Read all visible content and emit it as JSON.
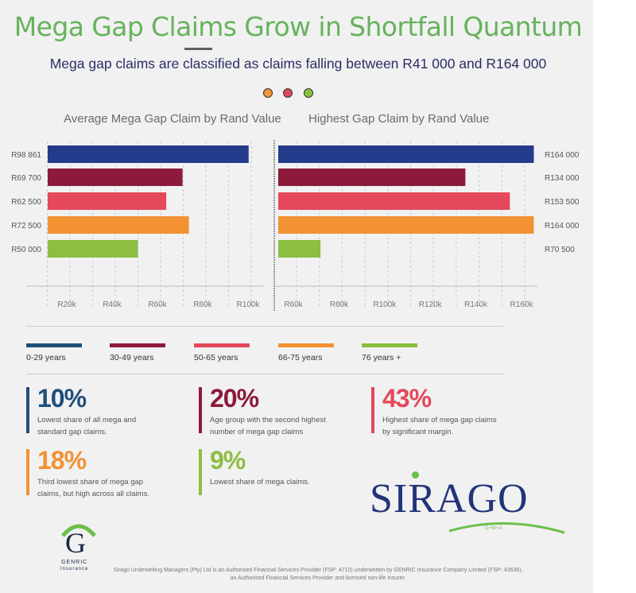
{
  "header": {
    "title": "Mega Gap Claims Grow in Shortfall Quantum",
    "subtitle": "Mega gap claims are classified as claims falling between R41 000 and R164 000",
    "dot_colors": [
      "#f0953a",
      "#e0475a",
      "#8bc140"
    ]
  },
  "chart_data": [
    {
      "type": "bar",
      "orientation": "horizontal",
      "title": "Average Mega Gap Claim by Rand Value",
      "categories": [
        "0-29 years",
        "30-49 years",
        "50-65 years",
        "66-75 years",
        "76 years +"
      ],
      "values": [
        98861,
        69700,
        62500,
        72500,
        50000
      ],
      "data_labels": [
        "R98 861",
        "R69 700",
        "R62 500",
        "R72 500",
        "R50 000"
      ],
      "colors": [
        "#233b8a",
        "#8c1a3a",
        "#e5485a",
        "#f39232",
        "#8cbe3f"
      ],
      "xticks": [
        20000,
        40000,
        60000,
        80000,
        100000
      ],
      "xtick_labels": [
        "R20k",
        "R40k",
        "R60k",
        "R80k",
        "R100k"
      ],
      "xlim": [
        10000,
        105000
      ],
      "grid": true
    },
    {
      "type": "bar",
      "orientation": "horizontal",
      "title": "Highest Gap Claim by Rand Value",
      "categories": [
        "0-29 years",
        "30-49 years",
        "50-65 years",
        "66-75 years",
        "76 years +"
      ],
      "values": [
        164000,
        134000,
        153500,
        164000,
        70500
      ],
      "data_labels": [
        "R164 000",
        "R134 000",
        "R153 500",
        "R164 000",
        "R70 500"
      ],
      "colors": [
        "#233b8a",
        "#8c1a3a",
        "#e5485a",
        "#f39232",
        "#8cbe3f"
      ],
      "xticks": [
        60000,
        80000,
        100000,
        120000,
        140000,
        160000
      ],
      "xtick_labels": [
        "R60k",
        "R80k",
        "R100k",
        "R120k",
        "R140k",
        "R160k"
      ],
      "xlim": [
        52000,
        165000
      ],
      "grid": true
    }
  ],
  "legend": [
    {
      "label": "0-29 years",
      "color": "#1f4e7a"
    },
    {
      "label": "30-49 years",
      "color": "#8c1a3a"
    },
    {
      "label": "50-65 years",
      "color": "#e5485a"
    },
    {
      "label": "66-75 years",
      "color": "#f39232"
    },
    {
      "label": "76 years +",
      "color": "#8cbe3f"
    }
  ],
  "stats": [
    {
      "value": "10%",
      "desc1": "Lowest share of all mega and",
      "desc2": "standard gap claims.",
      "color": "#1f4e7a"
    },
    {
      "value": "20%",
      "desc1": "Age group with the second highest",
      "desc2": "number of mega gap claims",
      "color": "#8c1a3a"
    },
    {
      "value": "43%",
      "desc1": "Highest share of mega gap claims",
      "desc2": "by significant margin.",
      "color": "#e5485a"
    },
    {
      "value": "18%",
      "desc1": "Third lowest share of mega gap",
      "desc2": "claims, but high across all claims.",
      "color": "#f39232"
    },
    {
      "value": "9%",
      "desc1": "Lowest share of mega claims.",
      "desc2": "",
      "color": "#8cbe3f"
    }
  ],
  "logos": {
    "sirago": "SIRAGO",
    "sirago_sub": "U•M•A",
    "genric_letter": "G",
    "genric_name": "GENRIC",
    "genric_sub": "Insurance"
  },
  "footer": {
    "line1": "Sirago Underwriting Managers (Pty) Ltd is an Authorised Financial Services Provider (FSP: 4710) underwritten by GENRIC Insurance Company Limited (FSP: 43638),",
    "line2": "an Authorised Financial Services Provider and licensed non-life insurer."
  }
}
